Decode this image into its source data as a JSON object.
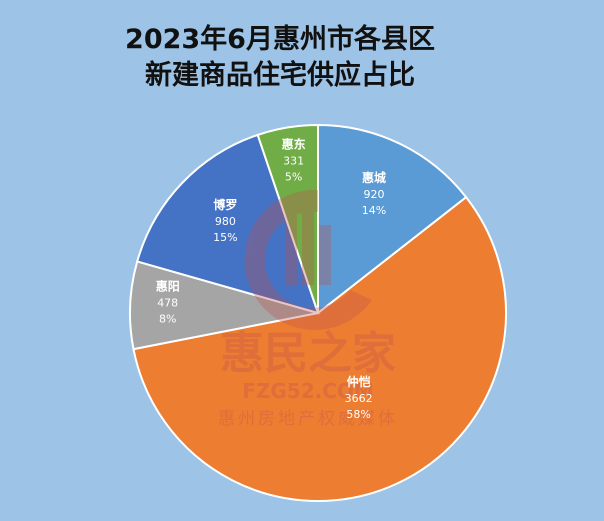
{
  "chart_data": {
    "type": "pie",
    "title_line1": "2023年6月惠州市各县区",
    "title_line2": "新建商品住宅供应占比",
    "slices": [
      {
        "name": "惠城",
        "value": 920,
        "percent": "14%",
        "color": "#5b9bd5"
      },
      {
        "name": "仲恺",
        "value": 3662,
        "percent": "58%",
        "color": "#ed7d31"
      },
      {
        "name": "惠阳",
        "value": 478,
        "percent": "8%",
        "color": "#a5a5a5"
      },
      {
        "name": "博罗",
        "value": 980,
        "percent": "15%",
        "color": "#4472c4"
      },
      {
        "name": "惠东",
        "value": 331,
        "percent": "5%",
        "color": "#70ad47"
      }
    ],
    "start": "top",
    "direction": "clockwise",
    "legend": "none"
  },
  "watermark": {
    "brand": "惠民之家",
    "url": "FZG52.COM",
    "tagline": "惠州房地产权威媒体"
  }
}
